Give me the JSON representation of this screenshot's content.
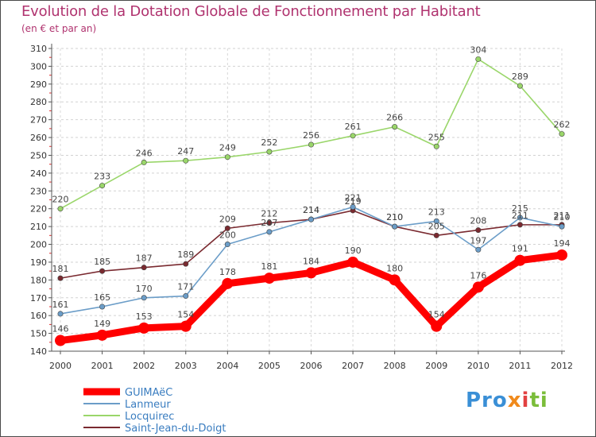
{
  "chart_data": {
    "type": "line",
    "title": "Evolution de la Dotation Globale de Fonctionnement par Habitant",
    "subtitle": "(en € et par an)",
    "xlabel": "",
    "ylabel": "",
    "x": [
      "2000",
      "2001",
      "2002",
      "2003",
      "2004",
      "2005",
      "2006",
      "2007",
      "2008",
      "2009",
      "2010",
      "2011",
      "2012"
    ],
    "ylim": [
      140,
      310
    ],
    "yticks": [
      "140",
      "150",
      "160",
      "170",
      "180",
      "190",
      "200",
      "210",
      "220",
      "230",
      "240",
      "250",
      "260",
      "270",
      "280",
      "290",
      "300",
      "310"
    ],
    "grid": "horizontal dashed",
    "legend_position": "bottom-left",
    "series": [
      {
        "name": "GUIMAëC",
        "color": "#ff0000",
        "values": [
          146,
          149,
          153,
          154,
          178,
          181,
          184,
          190,
          180,
          154,
          176,
          191,
          194
        ]
      },
      {
        "name": "Lanmeur",
        "color": "#6b9dc8",
        "values": [
          161,
          165,
          170,
          171,
          200,
          207,
          214,
          221,
          210,
          213,
          197,
          215,
          210
        ]
      },
      {
        "name": "Locquirec",
        "color": "#9ad66a",
        "values": [
          220,
          233,
          246,
          247,
          249,
          252,
          256,
          261,
          266,
          255,
          304,
          289,
          262
        ]
      },
      {
        "name": "Saint-Jean-du-Doigt",
        "color": "#7a2a30",
        "values": [
          181,
          185,
          187,
          189,
          209,
          212,
          214,
          219,
          210,
          205,
          208,
          211,
          211
        ]
      }
    ]
  },
  "logo": {
    "p1": "Pro",
    "p2": "x",
    "p3": "i",
    "p4": "ti"
  }
}
